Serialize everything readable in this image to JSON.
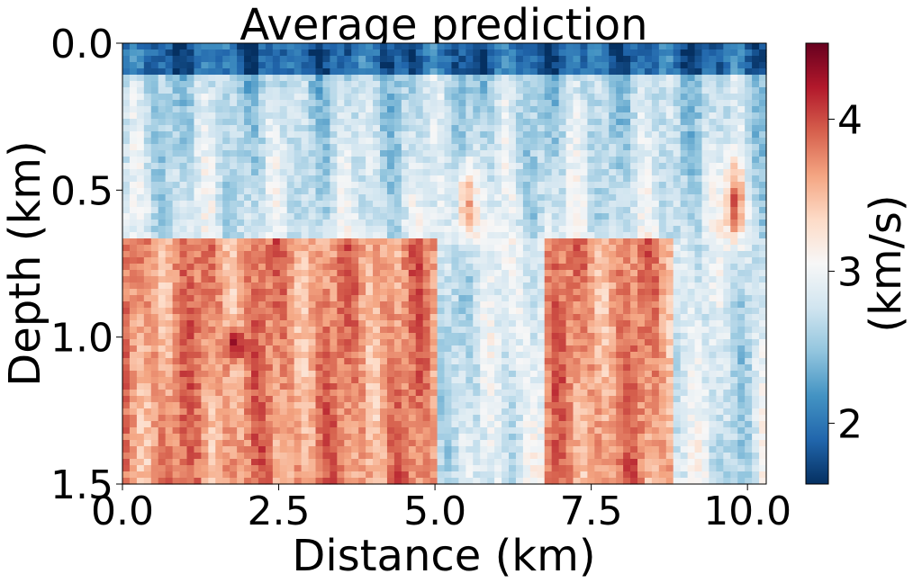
{
  "chart_data": {
    "type": "heatmap",
    "title": "Average prediction",
    "xlabel": "Distance (km)",
    "ylabel": "Depth (km)",
    "xlim": [
      0,
      10.3
    ],
    "ylim": [
      1.5,
      0
    ],
    "x_ticks": [
      "0.0",
      "2.5",
      "5.0",
      "7.5",
      "10.0"
    ],
    "y_ticks": [
      "0.0",
      "0.5",
      "1.0",
      "1.5"
    ],
    "colorbar": {
      "label": "(km/s)",
      "cmap": "RdBu_r",
      "range": [
        1.6,
        4.5
      ],
      "ticks": [
        "2",
        "3",
        "4"
      ]
    },
    "description_values": {
      "layers": [
        {
          "depth_range": [
            0.0,
            0.1
          ],
          "velocity_km_s": 1.9
        },
        {
          "depth_range": [
            0.1,
            0.6
          ],
          "velocity_km_s": 2.6
        },
        {
          "depth_range": [
            0.7,
            1.5
          ],
          "velocity_km_s": 3.7
        }
      ],
      "low_velocity_gaps_km": [
        [
          5.0,
          6.7
        ],
        [
          8.8,
          10.3
        ]
      ],
      "high_velocity_lenses": [
        {
          "x_km": 5.5,
          "depth_km": 0.55,
          "velocity_km_s": 3.8
        },
        {
          "x_km": 9.8,
          "depth_km": 0.55,
          "velocity_km_s": 3.9
        }
      ],
      "max_anomaly": {
        "x_km": 1.8,
        "depth_km": 1.03,
        "velocity_km_s": 4.5
      }
    }
  }
}
